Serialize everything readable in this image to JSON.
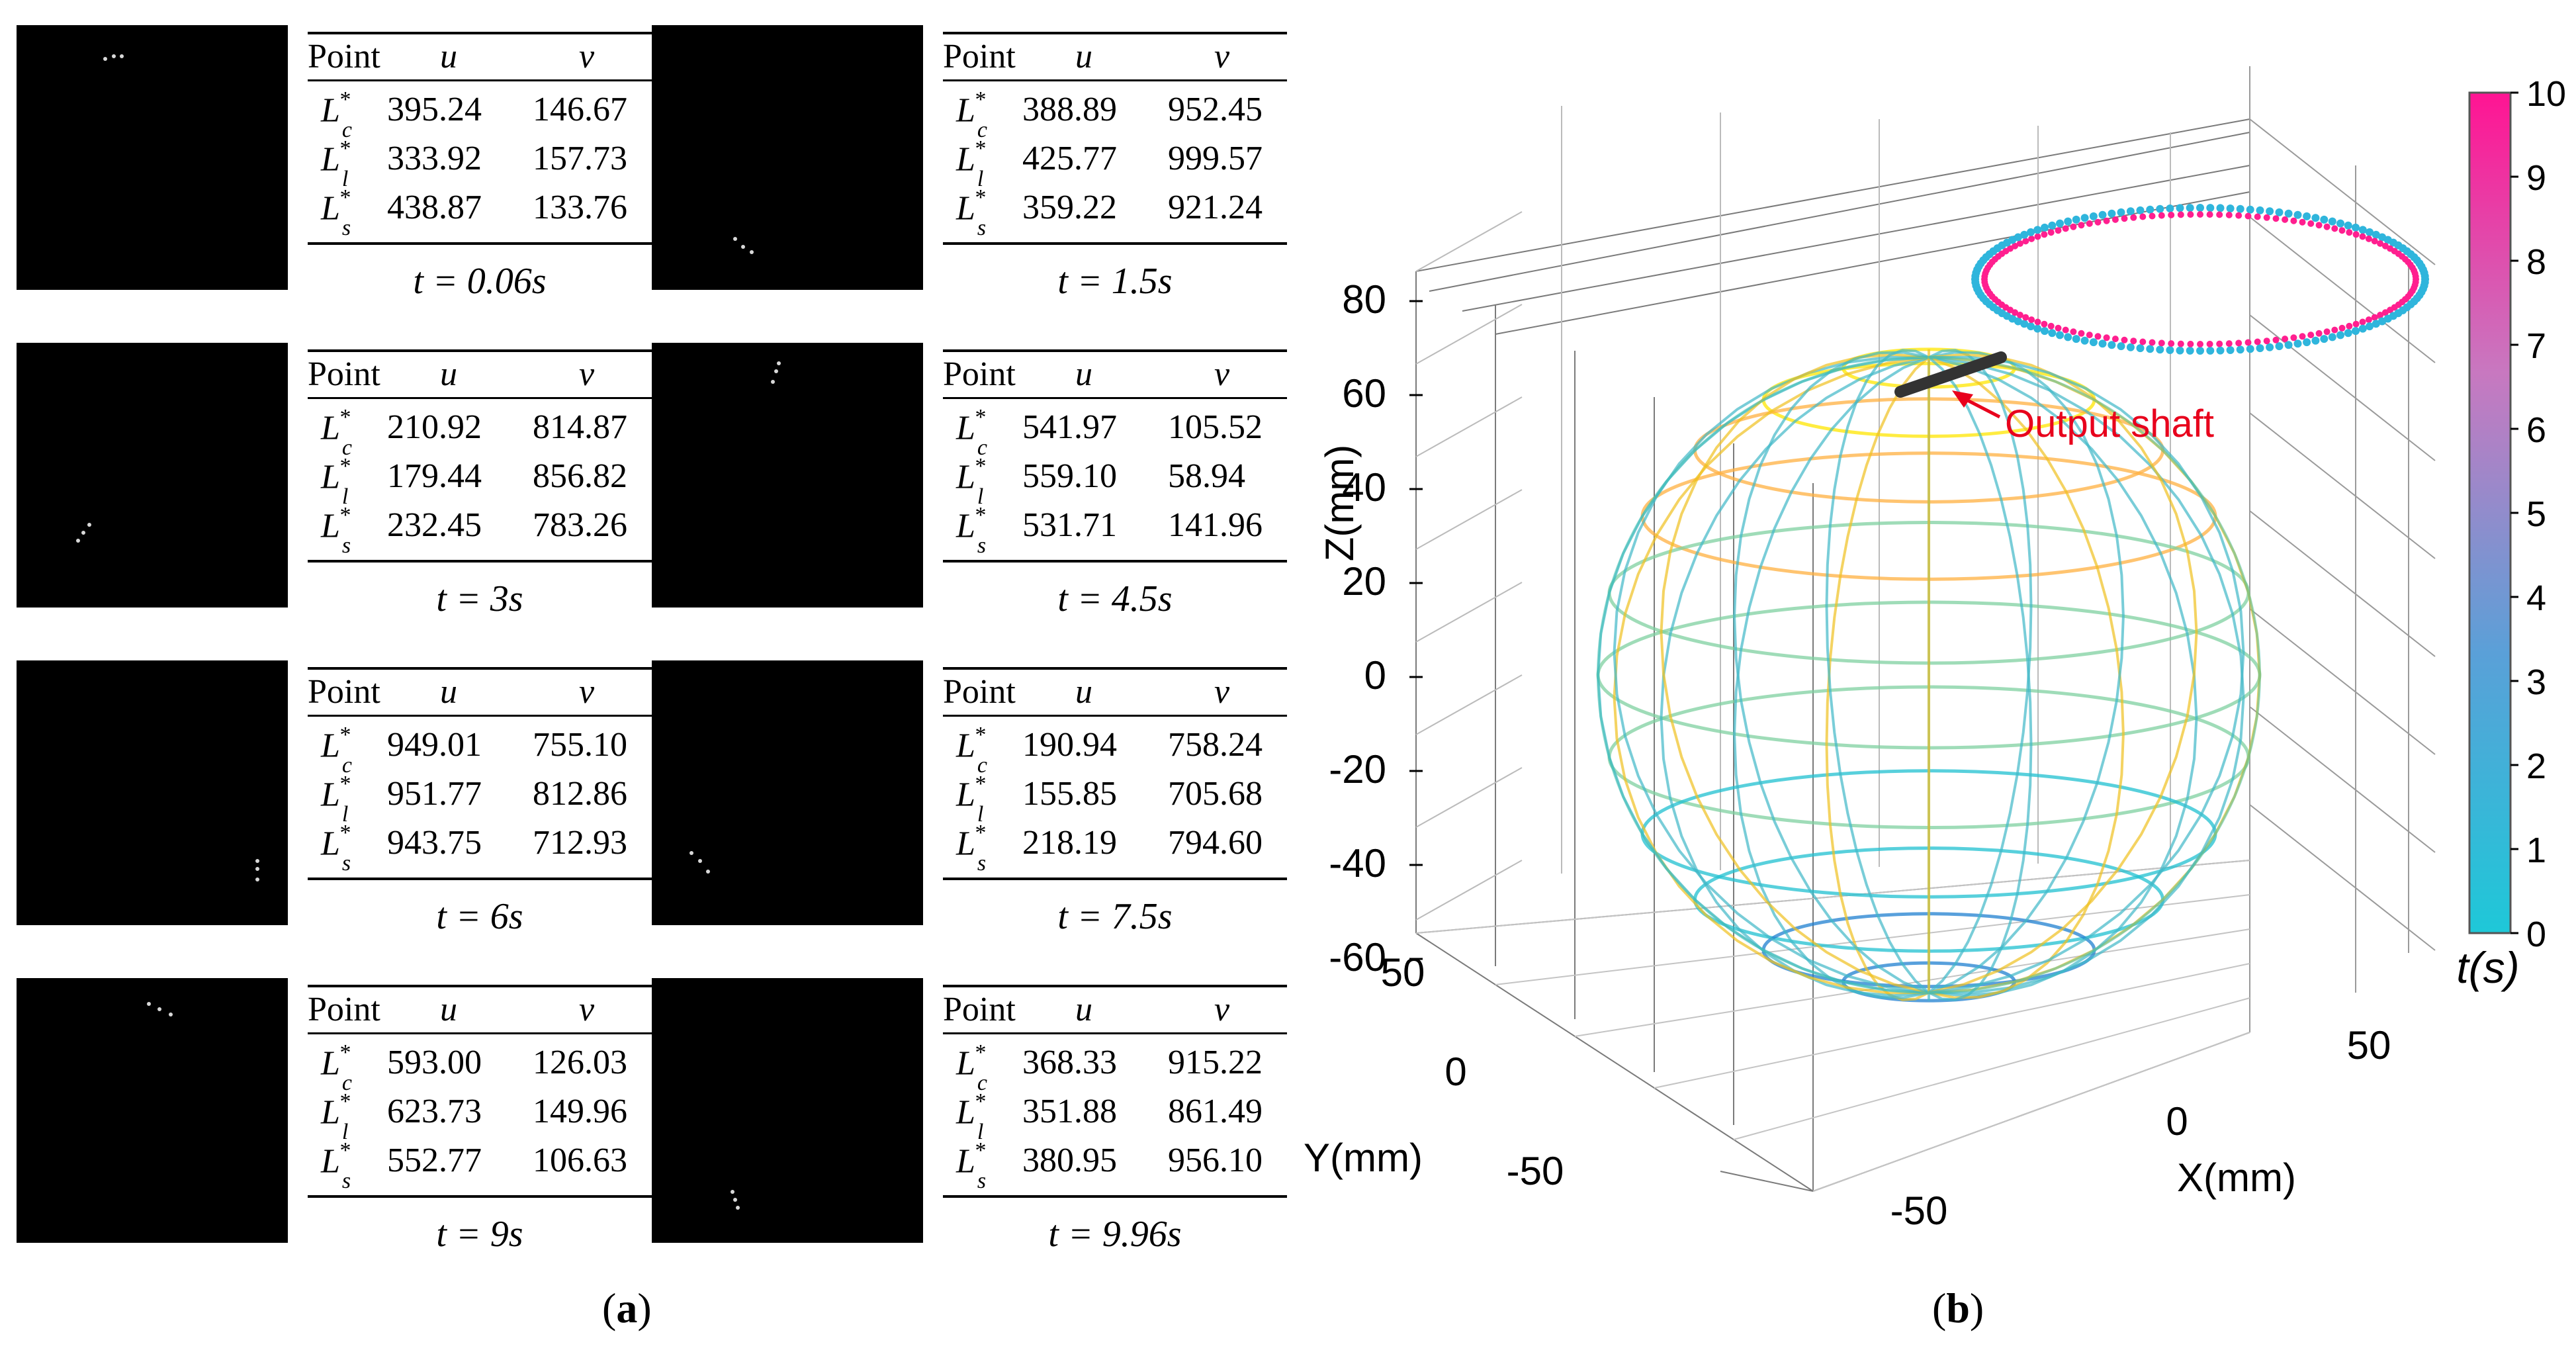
{
  "panel_a": {
    "caption_prefix": "(",
    "caption_letter": "a",
    "caption_suffix": ")",
    "header": {
      "point": "Point",
      "u": "u",
      "v": "v"
    },
    "frames": [
      {
        "time": "t = 0.06s",
        "rows": [
          {
            "sub": "c",
            "u": "395.24",
            "v": "146.67"
          },
          {
            "sub": "l",
            "u": "333.92",
            "v": "157.73"
          },
          {
            "sub": "s",
            "u": "438.87",
            "v": "133.76"
          }
        ]
      },
      {
        "time": "t = 1.5s",
        "rows": [
          {
            "sub": "c",
            "u": "388.89",
            "v": "952.45"
          },
          {
            "sub": "l",
            "u": "425.77",
            "v": "999.57"
          },
          {
            "sub": "s",
            "u": "359.22",
            "v": "921.24"
          }
        ]
      },
      {
        "time": "t = 3s",
        "rows": [
          {
            "sub": "c",
            "u": "210.92",
            "v": "814.87"
          },
          {
            "sub": "l",
            "u": "179.44",
            "v": "856.82"
          },
          {
            "sub": "s",
            "u": "232.45",
            "v": "783.26"
          }
        ]
      },
      {
        "time": "t = 4.5s",
        "rows": [
          {
            "sub": "c",
            "u": "541.97",
            "v": "105.52"
          },
          {
            "sub": "l",
            "u": "559.10",
            "v": "58.94"
          },
          {
            "sub": "s",
            "u": "531.71",
            "v": "141.96"
          }
        ]
      },
      {
        "time": "t = 6s",
        "rows": [
          {
            "sub": "c",
            "u": "949.01",
            "v": "755.10"
          },
          {
            "sub": "l",
            "u": "951.77",
            "v": "812.86"
          },
          {
            "sub": "s",
            "u": "943.75",
            "v": "712.93"
          }
        ]
      },
      {
        "time": "t = 7.5s",
        "rows": [
          {
            "sub": "c",
            "u": "190.94",
            "v": "758.24"
          },
          {
            "sub": "l",
            "u": "155.85",
            "v": "705.68"
          },
          {
            "sub": "s",
            "u": "218.19",
            "v": "794.60"
          }
        ]
      },
      {
        "time": "t = 9s",
        "rows": [
          {
            "sub": "c",
            "u": "593.00",
            "v": "126.03"
          },
          {
            "sub": "l",
            "u": "623.73",
            "v": "149.96"
          },
          {
            "sub": "s",
            "u": "552.77",
            "v": "106.63"
          }
        ]
      },
      {
        "time": "t = 9.96s",
        "rows": [
          {
            "sub": "c",
            "u": "368.33",
            "v": "915.22"
          },
          {
            "sub": "l",
            "u": "351.88",
            "v": "861.49"
          },
          {
            "sub": "s",
            "u": "380.95",
            "v": "956.10"
          }
        ]
      }
    ]
  },
  "panel_b": {
    "caption_prefix": "(",
    "caption_letter": "b",
    "caption_suffix": ")",
    "annotation": "Output shaft",
    "annotation_color": "#e8001c",
    "axis_labels": {
      "z": "Z(mm)",
      "y": "Y(mm)",
      "x": "X(mm)"
    },
    "z_ticks": [
      "80",
      "60",
      "40",
      "20",
      "0",
      "-20",
      "-40",
      "-60"
    ],
    "y_ticks": [
      "50",
      "0",
      "-50"
    ],
    "x_ticks": [
      "50",
      "0",
      "-50"
    ],
    "colorbar": {
      "label": "t(s)",
      "ticks": [
        "10",
        "9",
        "8",
        "7",
        "6",
        "5",
        "4",
        "3",
        "2",
        "1",
        "0"
      ],
      "colors": [
        "#ff1493",
        "#c878c0",
        "#5aa0d8",
        "#1ec8d8"
      ]
    },
    "trajectory_colors": {
      "start": "#2fb5dc",
      "end": "#ff1f8f"
    },
    "sphere_colors": [
      "#ffe600",
      "#ffb040",
      "#7fd0a0",
      "#20c0d0",
      "#2080d0",
      "#c0a0d0"
    ],
    "shaft_color": "#333333"
  }
}
